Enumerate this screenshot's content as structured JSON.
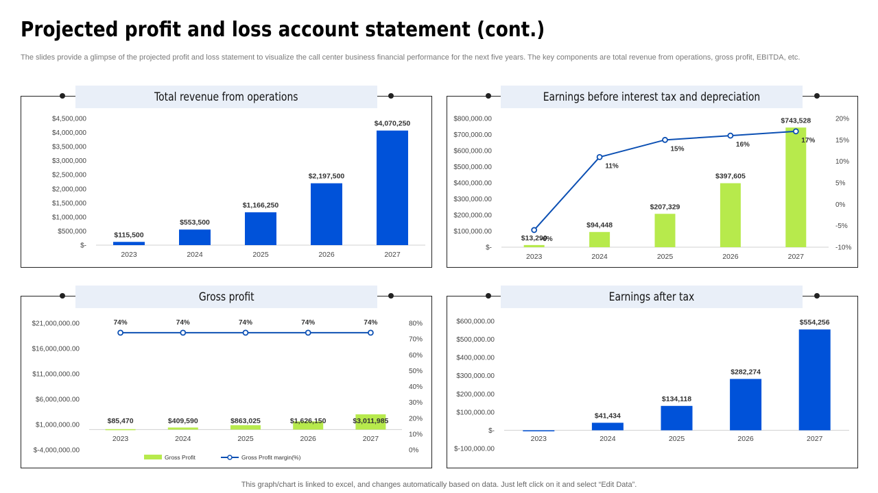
{
  "page": {
    "title": "Projected profit and loss account statement (cont.)",
    "subtitle": "The slides provide a glimpse of the projected profit and loss statement to visualize the call center business financial performance for the next five years. The key components are total revenue from operations, gross profit, EBITDA, etc.",
    "footer": "This graph/chart is linked to excel, and changes automatically based on data. Just left click on it and select “Edit Data”."
  },
  "colors": {
    "blue": "#0052d9",
    "green": "#b7ea4c",
    "line": "#0b4fb3",
    "header_bg": "#e9eff8"
  },
  "chart_data": [
    {
      "type": "bar",
      "title": "Total revenue from operations",
      "categories": [
        "2023",
        "2024",
        "2025",
        "2026",
        "2027"
      ],
      "values": [
        115500,
        553500,
        1166250,
        2197500,
        4070250
      ],
      "value_labels": [
        "$115,500",
        "$553,500",
        "$1,166,250",
        "$2,197,500",
        "$4,070,250"
      ],
      "ylim": [
        0,
        4500000
      ],
      "yticks": [
        0,
        500000,
        1000000,
        1500000,
        2000000,
        2500000,
        3000000,
        3500000,
        4000000,
        4500000
      ],
      "ytick_labels": [
        "$-",
        "$500,000",
        "$1,000,000",
        "$1,500,000",
        "$2,000,000",
        "$2,500,000",
        "$3,000,000",
        "$3,500,000",
        "$4,000,000",
        "$4,500,000"
      ],
      "grid": false
    },
    {
      "type": "bar+line",
      "title": "Earnings before interest tax and depreciation",
      "categories": [
        "2023",
        "2024",
        "2025",
        "2026",
        "2027"
      ],
      "series": [
        {
          "name": "EBITDA",
          "kind": "bar",
          "axis": "left",
          "values": [
            13290,
            94448,
            207329,
            397605,
            743528
          ],
          "value_labels": [
            "$13,290",
            "$94,448",
            "$207,329",
            "$397,605",
            "$743,528"
          ]
        },
        {
          "name": "EBITDA margin",
          "kind": "line",
          "axis": "right",
          "values": [
            -6,
            11,
            15,
            16,
            17
          ],
          "value_labels": [
            "-6%",
            "11%",
            "15%",
            "16%",
            "17%"
          ]
        }
      ],
      "ylim": [
        0,
        800000
      ],
      "yticks": [
        0,
        100000,
        200000,
        300000,
        400000,
        500000,
        600000,
        700000,
        800000
      ],
      "ytick_labels": [
        "$-",
        "$100,000.00",
        "$200,000.00",
        "$300,000.00",
        "$400,000.00",
        "$500,000.00",
        "$600,000.00",
        "$700,000.00",
        "$800,000.00"
      ],
      "y2lim": [
        -10,
        20
      ],
      "y2ticks": [
        -10,
        -5,
        0,
        5,
        10,
        15,
        20
      ],
      "y2tick_labels": [
        "-10%",
        "-5%",
        "0%",
        "5%",
        "10%",
        "15%",
        "20%"
      ],
      "grid": false
    },
    {
      "type": "bar+line",
      "title": "Gross profit",
      "categories": [
        "2023",
        "2024",
        "2025",
        "2026",
        "2027"
      ],
      "series": [
        {
          "name": "Gross Profit",
          "kind": "bar",
          "axis": "left",
          "values": [
            85470,
            409590,
            863025,
            1626150,
            3011985
          ],
          "value_labels": [
            "$85,470",
            "$409,590",
            "$863,025",
            "$1,626,150",
            "$3,011,985"
          ]
        },
        {
          "name": "Gross Profit margin(%)",
          "kind": "line",
          "axis": "right",
          "values": [
            74,
            74,
            74,
            74,
            74
          ],
          "value_labels": [
            "74%",
            "74%",
            "74%",
            "74%",
            "74%"
          ]
        }
      ],
      "ylim": [
        -4000000,
        21000000
      ],
      "yticks": [
        -4000000,
        1000000,
        6000000,
        11000000,
        16000000,
        21000000
      ],
      "ytick_labels": [
        "$-4,000,000.00",
        "$1,000,000.00",
        "$6,000,000.00",
        "$11,000,000.00",
        "$16,000,000.00",
        "$21,000,000.00"
      ],
      "y2lim": [
        0,
        80
      ],
      "y2ticks": [
        0,
        10,
        20,
        30,
        40,
        50,
        60,
        70,
        80
      ],
      "y2tick_labels": [
        "0%",
        "10%",
        "20%",
        "30%",
        "40%",
        "50%",
        "60%",
        "70%",
        "80%"
      ],
      "legend": [
        "Gross Profit",
        "Gross Profit margin(%)"
      ],
      "legend_position": "bottom",
      "grid": false
    },
    {
      "type": "bar",
      "title": "Earnings after tax",
      "categories": [
        "2023",
        "2024",
        "2025",
        "2026",
        "2027"
      ],
      "values": [
        -3000,
        41434,
        134118,
        282274,
        554256
      ],
      "value_labels": [
        "",
        "$41,434",
        "$134,118",
        "$282,274",
        "$554,256"
      ],
      "ylim": [
        -100000,
        600000
      ],
      "yticks": [
        -100000,
        0,
        100000,
        200000,
        300000,
        400000,
        500000,
        600000
      ],
      "ytick_labels": [
        "$-100,000.00",
        "$-",
        "$100,000.00",
        "$200,000.00",
        "$300,000.00",
        "$400,000.00",
        "$500,000.00",
        "$600,000.00"
      ],
      "grid": false
    }
  ]
}
